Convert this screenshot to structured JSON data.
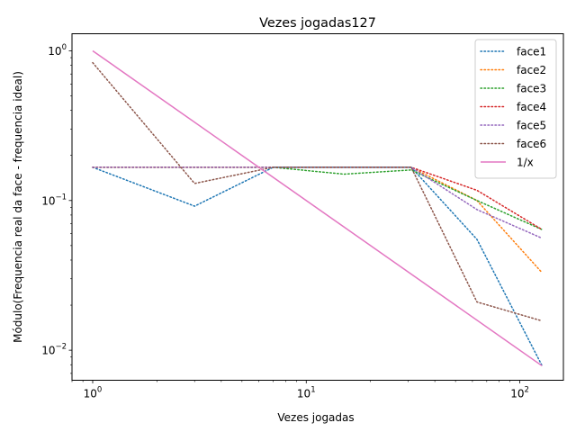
{
  "chart_data": {
    "type": "line",
    "title": "Vezes jogadas127",
    "xlabel": "Vezes jogadas",
    "ylabel": "Módulo(Frequencia real da face - frequencia ideal)",
    "xscale": "log",
    "yscale": "log",
    "xlim": [
      0.8,
      160
    ],
    "ylim": [
      0.0063,
      1.3
    ],
    "grid": false,
    "legend_position": "top-right",
    "x_ticks": [
      {
        "value": 1,
        "base": "10",
        "exp": "0"
      },
      {
        "value": 10,
        "base": "10",
        "exp": "1"
      },
      {
        "value": 100,
        "base": "10",
        "exp": "2"
      }
    ],
    "y_ticks": [
      {
        "value": 0.01,
        "base": "10",
        "exp": "−2"
      },
      {
        "value": 0.1,
        "base": "10",
        "exp": "−1"
      },
      {
        "value": 1,
        "base": "10",
        "exp": "0"
      }
    ],
    "x": [
      1,
      3,
      7,
      15,
      31,
      63,
      127
    ],
    "series": [
      {
        "name": "face1",
        "style": "dotted",
        "color": "#1f77b4",
        "values": [
          0.1667,
          0.0917,
          0.1667,
          0.1667,
          0.1667,
          0.055,
          0.0079
        ]
      },
      {
        "name": "face2",
        "style": "dotted",
        "color": "#ff7f0e",
        "values": [
          0.1667,
          0.1667,
          0.1667,
          0.1667,
          0.1667,
          0.1,
          0.033
        ]
      },
      {
        "name": "face3",
        "style": "dotted",
        "color": "#2ca02c",
        "values": [
          0.1667,
          0.1667,
          0.1667,
          0.15,
          0.16,
          0.1,
          0.064
        ]
      },
      {
        "name": "face4",
        "style": "dotted",
        "color": "#d62728",
        "values": [
          0.1667,
          0.1667,
          0.1667,
          0.1667,
          0.1667,
          0.117,
          0.064
        ]
      },
      {
        "name": "face5",
        "style": "dotted",
        "color": "#9467bd",
        "values": [
          0.1667,
          0.1667,
          0.1667,
          0.1667,
          0.1667,
          0.087,
          0.056
        ]
      },
      {
        "name": "face6",
        "style": "dotted",
        "color": "#8c564b",
        "values": [
          0.8333,
          0.13,
          0.1667,
          0.1667,
          0.1667,
          0.021,
          0.0157
        ]
      },
      {
        "name": "1/x",
        "style": "solid",
        "color": "#e377c2",
        "x": [
          1,
          127
        ],
        "values": [
          1,
          0.00787
        ]
      }
    ]
  }
}
